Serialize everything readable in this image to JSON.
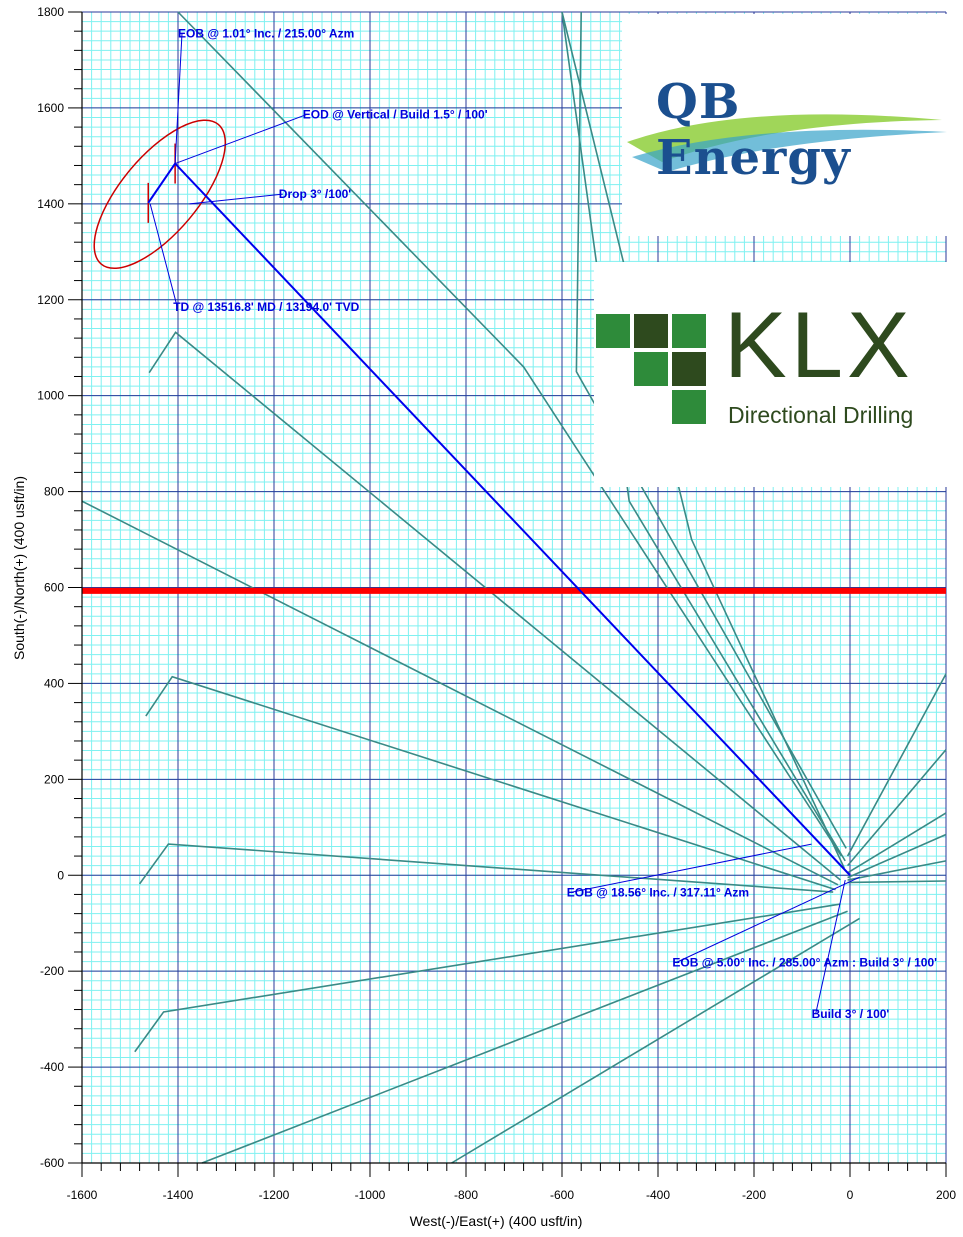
{
  "chart_data": {
    "type": "line",
    "xlabel": "West(-)/East(+)  (400  usft/in)",
    "ylabel": "South(-)/North(+)  (400  usft/in)",
    "xlim": [
      -1600,
      200
    ],
    "ylim": [
      -600,
      1800
    ],
    "x_ticks": [
      -1600,
      -1400,
      -1200,
      -1000,
      -800,
      -600,
      -400,
      -200,
      0,
      200
    ],
    "y_ticks": [
      -600,
      -400,
      -200,
      0,
      200,
      400,
      600,
      800,
      1000,
      1200,
      1400,
      1600,
      1800
    ],
    "x_tick_labels": [
      "-1600",
      "-1400",
      "-1200",
      "-1000",
      "-800",
      "-600",
      "-400",
      "-200",
      "0",
      "200"
    ],
    "y_tick_labels": [
      "-600",
      "-400",
      "-200",
      "0",
      "200",
      "400",
      "600",
      "800",
      "1000",
      "1200",
      "1400",
      "1600",
      "1800"
    ],
    "grid": true,
    "plan": {
      "color": "#0000ee",
      "x": [
        0,
        -1406,
        -1462
      ],
      "y": [
        0,
        1484,
        1402
      ]
    },
    "offset_wells": [
      {
        "x": [
          -8,
          -570,
          -560
        ],
        "y": [
          56,
          1050,
          1800
        ]
      },
      {
        "x": [
          -10,
          -460,
          -600
        ],
        "y": [
          30,
          780,
          1800
        ]
      },
      {
        "x": [
          -12,
          -330,
          -600
        ],
        "y": [
          15,
          700,
          1800
        ]
      },
      {
        "x": [
          -18,
          -680,
          -1400
        ],
        "y": [
          40,
          1060,
          1800
        ]
      },
      {
        "x": [
          -20,
          -1405,
          -1460
        ],
        "y": [
          -10,
          1132,
          1048
        ]
      },
      {
        "x": [
          -25,
          -1600
        ],
        "y": [
          -20,
          780
        ]
      },
      {
        "x": [
          -30,
          -1412,
          -1467
        ],
        "y": [
          -30,
          414,
          332
        ]
      },
      {
        "x": [
          -35,
          -1420,
          -1480
        ],
        "y": [
          -35,
          65,
          -18
        ]
      },
      {
        "x": [
          -20,
          -1430,
          -1490
        ],
        "y": [
          -60,
          -285,
          -368
        ]
      },
      {
        "x": [
          -5,
          -1350
        ],
        "y": [
          -75,
          -600
        ]
      },
      {
        "x": [
          20,
          -830
        ],
        "y": [
          -90,
          -600
        ]
      },
      {
        "x": [
          -5,
          200
        ],
        "y": [
          40,
          420
        ]
      },
      {
        "x": [
          -5,
          200
        ],
        "y": [
          20,
          262
        ]
      },
      {
        "x": [
          -5,
          200
        ],
        "y": [
          5,
          130
        ]
      },
      {
        "x": [
          -5,
          200
        ],
        "y": [
          -5,
          85
        ]
      },
      {
        "x": [
          -5,
          200
        ],
        "y": [
          -10,
          30
        ]
      },
      {
        "x": [
          -5,
          200
        ],
        "y": [
          -15,
          -12
        ]
      }
    ],
    "lease_line": {
      "y": 593,
      "color": "#ff0000"
    },
    "target_ellipse": {
      "cx": -1438,
      "cy": 1420,
      "rx": 80,
      "ry": 190
    },
    "annotations": [
      {
        "text": "EOB @ 1.01° Inc. / 215.00° Azm",
        "x": -1400,
        "y": 1747,
        "px": -1406,
        "py": 1484
      },
      {
        "text": "EOD @ Vertical / Build 1.5° / 100'",
        "x": -1140,
        "y": 1578,
        "px": -1406,
        "py": 1484
      },
      {
        "text": "Drop 3° /100'",
        "x": -1190,
        "y": 1412,
        "px": -1376,
        "py": 1400
      },
      {
        "text": "TD @ 13516.8' MD / 13194.0' TVD",
        "x": -1410,
        "y": 1177,
        "px": -1458,
        "py": 1400
      },
      {
        "text": "EOB @ 18.56° Inc. / 317.11° Azm",
        "x": -590,
        "y": -44,
        "px": -80,
        "py": 65
      },
      {
        "text": "EOB @ 5.00° Inc. / 285.00° Azm : Build 3° / 100'",
        "x": -370,
        "y": -190,
        "px": 20,
        "py": -4
      },
      {
        "text": "Build 3° / 100'",
        "x": -80,
        "y": -298,
        "px": -10,
        "py": -10
      }
    ]
  },
  "logos": {
    "qb_energy": {
      "text": "QB Energy"
    },
    "klx": {
      "text": "KLX",
      "subtitle": "Directional Drilling"
    }
  }
}
